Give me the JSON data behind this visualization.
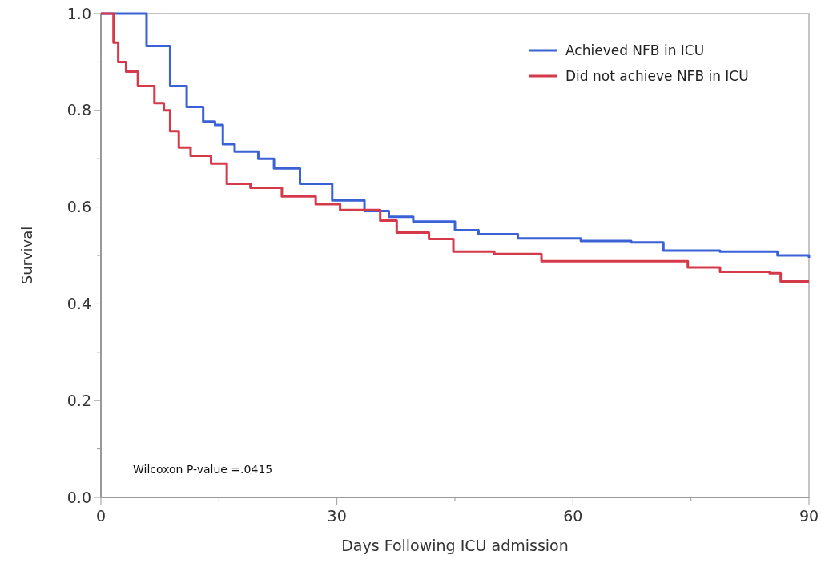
{
  "chart_data": {
    "type": "step",
    "xlabel": "Days Following ICU admission",
    "ylabel": "Survival",
    "xlim": [
      0,
      90
    ],
    "xticks": [
      0,
      {
        "value": 15,
        "label": null
      },
      30,
      {
        "value": 45,
        "label": null
      },
      60,
      {
        "value": 75,
        "label": null
      },
      90
    ],
    "ylim": [
      0,
      1
    ],
    "yticks": [
      {
        "value": 0,
        "label": "0.0"
      },
      {
        "value": 0.1,
        "label": null
      },
      0.2,
      {
        "value": 0.3,
        "label": null
      },
      0.4,
      {
        "value": 0.5,
        "label": null
      },
      0.6,
      {
        "value": 0.7,
        "label": null
      },
      0.8,
      {
        "value": 0.9,
        "label": null
      },
      {
        "value": 1,
        "label": "1.0"
      }
    ],
    "grid": false,
    "legend": "top right",
    "marker": "none",
    "line_style": "solid",
    "annotations": [
      "Wilcoxon P-value =.0415"
    ],
    "series": [
      {
        "name": "Achieved NFB in ICU",
        "color": "#3a62d6",
        "x": [
          0,
          2,
          5.8,
          8.8,
          10.9,
          13,
          14.5,
          15.5,
          17,
          20,
          22,
          25.3,
          29.4,
          33.5,
          36.6,
          39.7,
          45,
          48,
          53,
          61,
          67.4,
          71.5,
          78.7,
          86,
          90
        ],
        "values": [
          1,
          1,
          0.933,
          0.85,
          0.807,
          0.777,
          0.77,
          0.73,
          0.715,
          0.7,
          0.68,
          0.648,
          0.614,
          0.592,
          0.58,
          0.57,
          0.552,
          0.544,
          0.535,
          0.53,
          0.527,
          0.51,
          0.508,
          0.5,
          0.495
        ]
      },
      {
        "name": "Did not achieve NFB in ICU",
        "color": "#d53a4a",
        "x": [
          0,
          1.6,
          2.2,
          3.2,
          4.7,
          6.8,
          8,
          8.8,
          9.9,
          11.4,
          14,
          16,
          19,
          23,
          27.3,
          30.4,
          35.5,
          37.6,
          41.7,
          44.8,
          50,
          56,
          66,
          74.6,
          78.7,
          85,
          86.4,
          90
        ],
        "values": [
          1,
          0.94,
          0.9,
          0.88,
          0.85,
          0.815,
          0.8,
          0.757,
          0.723,
          0.706,
          0.69,
          0.648,
          0.64,
          0.622,
          0.606,
          0.594,
          0.572,
          0.547,
          0.534,
          0.508,
          0.503,
          0.488,
          0.488,
          0.475,
          0.466,
          0.463,
          0.446,
          0.446
        ]
      }
    ]
  }
}
